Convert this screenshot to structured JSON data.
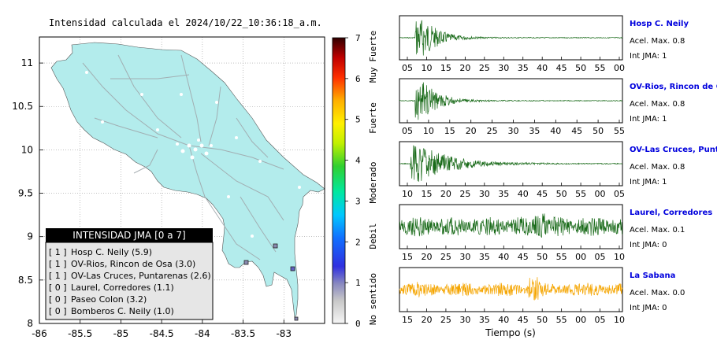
{
  "map": {
    "title": "Intensidad calculada el 2024/10/22_10:36:18_a.m."
  },
  "colorbar": {
    "ticks": [
      "0",
      "1",
      "2",
      "3",
      "4",
      "5",
      "6",
      "7"
    ],
    "categories": [
      "No sentido",
      "Debil",
      "Moderado",
      "Fuerte",
      "Muy Fuerte"
    ]
  },
  "legend": {
    "title": "INTENSIDAD JMA [0 a 7]",
    "items": [
      {
        "level": "[ 1 ]",
        "name": "Hosp C. Neily (5.9)"
      },
      {
        "level": "[ 1 ]",
        "name": "OV-Rios, Rincon de Osa (3.0)"
      },
      {
        "level": "[ 1 ]",
        "name": "OV-Las Cruces, Puntarenas (2.6)"
      },
      {
        "level": "[ 0 ]",
        "name": "Laurel, Corredores (1.1)"
      },
      {
        "level": "[ 0 ]",
        "name": "Paseo Colon (3.2)"
      },
      {
        "level": "[ 0 ]",
        "name": "Bomberos C. Neily (1.0)"
      }
    ]
  },
  "waveforms": {
    "xlabel": "Tiempo (s)",
    "acel_prefix": "Acel. Max.",
    "int_prefix": "Int JMA:",
    "panels": [
      {
        "station": "Hosp C. Neily",
        "acel": "0.8",
        "int": "1",
        "color": "#1a6b1a",
        "ticks": [
          "05",
          "10",
          "15",
          "20",
          "25",
          "30",
          "35",
          "40",
          "45",
          "50",
          "55",
          "00"
        ],
        "envelope": "early",
        "amp": 1.0
      },
      {
        "station": "OV-Rios, Rincon de Os",
        "acel": "0.8",
        "int": "1",
        "color": "#1a6b1a",
        "ticks": [
          "05",
          "10",
          "15",
          "20",
          "25",
          "30",
          "35",
          "40",
          "45",
          "50",
          "55"
        ],
        "envelope": "early",
        "amp": 1.0
      },
      {
        "station": "OV-Las Cruces, Puntar",
        "acel": "0.8",
        "int": "1",
        "color": "#1a6b1a",
        "ticks": [
          "10",
          "15",
          "20",
          "25",
          "30",
          "35",
          "40",
          "45",
          "50",
          "55",
          "00",
          "05"
        ],
        "envelope": "early",
        "amp": 1.0
      },
      {
        "station": "Laurel, Corredores",
        "acel": "0.1",
        "int": "0",
        "color": "#1a6b1a",
        "ticks": [
          "15",
          "20",
          "25",
          "30",
          "35",
          "40",
          "45",
          "50",
          "55",
          "00",
          "05",
          "10"
        ],
        "envelope": "noise",
        "amp": 0.6
      },
      {
        "station": "La Sabana",
        "acel": "0.0",
        "int": "0",
        "color": "#f5a500",
        "ticks": [
          "15",
          "20",
          "25",
          "30",
          "35",
          "40",
          "45",
          "50",
          "55",
          "00",
          "05",
          "10"
        ],
        "envelope": "noise2",
        "amp": 0.55
      }
    ]
  },
  "chart_data": [
    {
      "type": "scatter",
      "title": "Intensidad calculada el 2024/10/22_10:36:18_a.m.",
      "xlim": [
        -86,
        -82.5
      ],
      "ylim": [
        8,
        11.3
      ],
      "x_ticks": [
        "-86",
        "-85.5",
        "-85",
        "-84.5",
        "-84",
        "-83.5",
        "-83"
      ],
      "y_ticks": [
        "8",
        "8.5",
        "9",
        "9.5",
        "10",
        "10.5",
        "11"
      ],
      "grid": true,
      "legend_placement": "bottom-left"
    },
    {
      "type": "line",
      "xlabel": "Tiempo (s)"
    }
  ]
}
